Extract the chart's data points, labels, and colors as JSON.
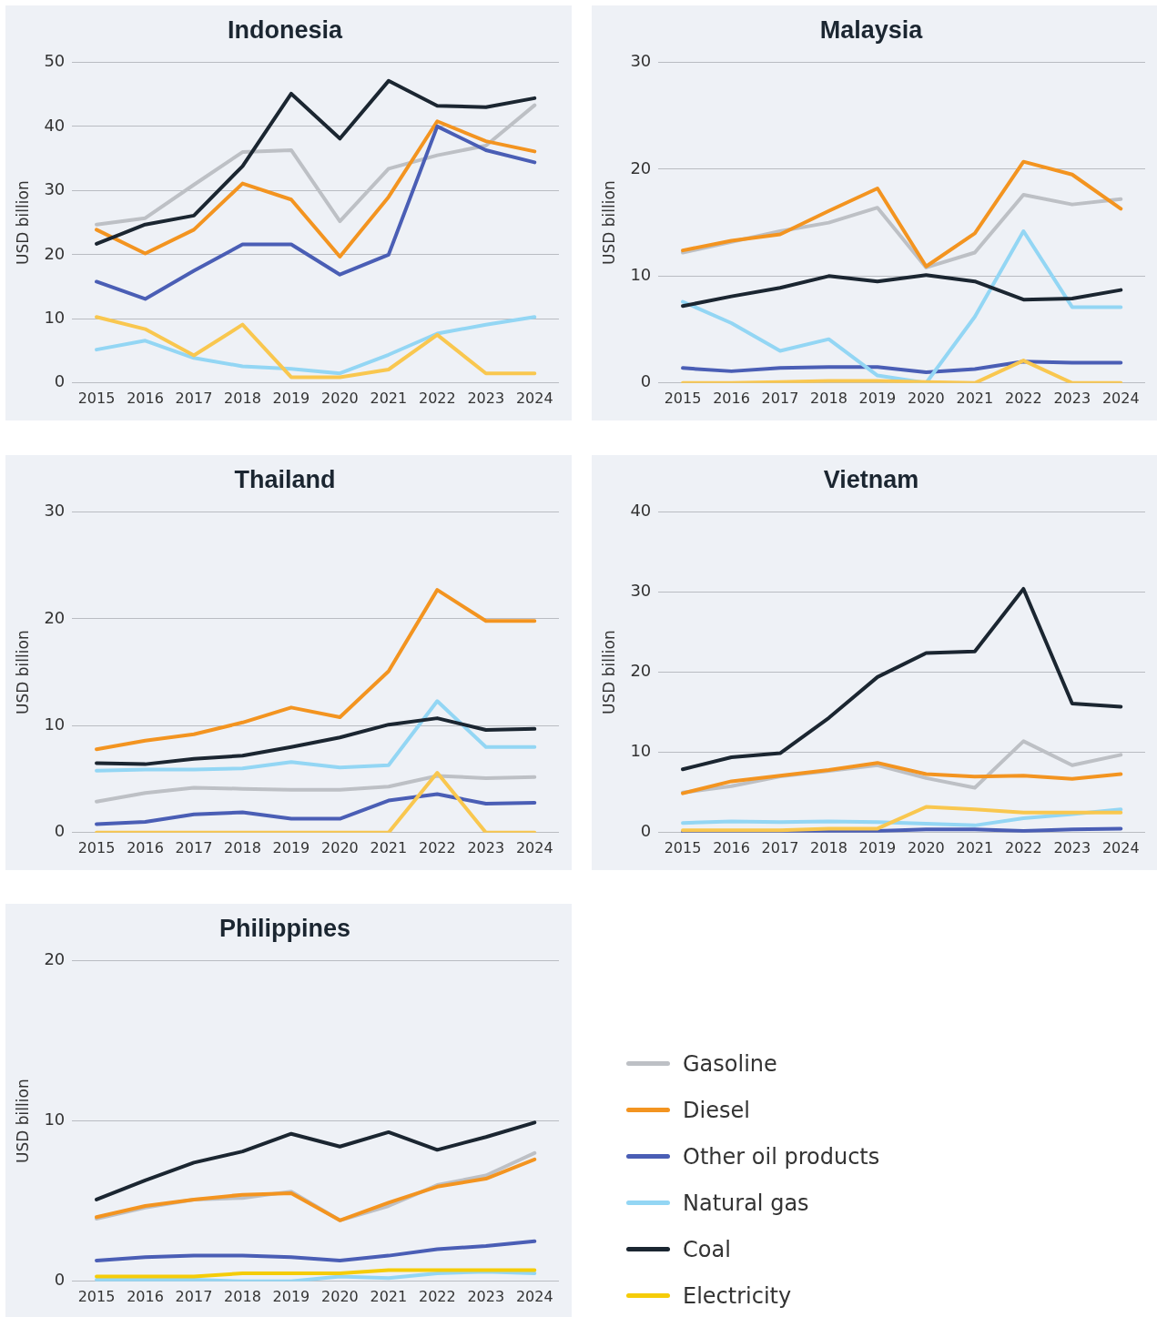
{
  "chart_data": [
    {
      "type": "line",
      "title": "Indonesia",
      "ylabel": "USD billion",
      "categories": [
        "2015",
        "2016",
        "2017",
        "2018",
        "2019",
        "2020",
        "2021",
        "2022",
        "2023",
        "2024"
      ],
      "ylim": [
        0,
        50
      ],
      "yticks": [
        0,
        10,
        20,
        30,
        40,
        50
      ],
      "grid": "y",
      "marker": "none",
      "line_style": "solid",
      "series": [
        {
          "color": "#bdc0c5",
          "values": [
            24.7,
            25.7,
            30.9,
            36.0,
            36.3,
            25.2,
            33.4,
            35.5,
            37.0,
            43.3
          ]
        },
        {
          "color": "#f39420",
          "values": [
            23.9,
            20.2,
            23.9,
            31.1,
            28.6,
            19.7,
            29.0,
            40.8,
            37.7,
            36.1
          ]
        },
        {
          "color": "#4a5eb5",
          "values": [
            15.8,
            13.1,
            17.5,
            21.6,
            21.6,
            16.9,
            20.0,
            40.0,
            36.3,
            34.4
          ]
        },
        {
          "color": "#93d6f4",
          "values": [
            5.2,
            6.6,
            3.9,
            2.6,
            2.2,
            1.5,
            4.4,
            7.7,
            9.1,
            10.3
          ]
        },
        {
          "color": "#1b2631",
          "values": [
            21.7,
            24.7,
            26.1,
            33.8,
            45.1,
            38.1,
            47.1,
            43.2,
            43.0,
            44.4
          ]
        },
        {
          "color": "#f9c74f",
          "values": [
            10.3,
            8.4,
            4.3,
            9.1,
            0.9,
            0.9,
            2.1,
            7.5,
            1.5,
            1.5
          ]
        }
      ]
    },
    {
      "type": "line",
      "title": "Malaysia",
      "ylabel": "USD billion",
      "categories": [
        "2015",
        "2016",
        "2017",
        "2018",
        "2019",
        "2020",
        "2021",
        "2022",
        "2023",
        "2024"
      ],
      "ylim": [
        0,
        30
      ],
      "yticks": [
        0,
        10,
        20,
        30
      ],
      "grid": "y",
      "marker": "none",
      "line_style": "solid",
      "series": [
        {
          "color": "#bdc0c5",
          "values": [
            12.2,
            13.2,
            14.2,
            15.0,
            16.4,
            10.8,
            12.2,
            17.6,
            16.7,
            17.2
          ]
        },
        {
          "color": "#f39420",
          "values": [
            12.4,
            13.3,
            13.9,
            16.1,
            18.2,
            10.9,
            14.0,
            20.7,
            19.5,
            16.3
          ]
        },
        {
          "color": "#4a5eb5",
          "values": [
            1.4,
            1.1,
            1.4,
            1.5,
            1.5,
            1.0,
            1.3,
            2.0,
            1.9,
            1.9
          ]
        },
        {
          "color": "#93d6f4",
          "values": [
            7.6,
            5.6,
            3.0,
            4.1,
            0.7,
            0,
            6.2,
            14.2,
            7.1,
            7.1
          ]
        },
        {
          "color": "#1b2631",
          "values": [
            7.2,
            8.1,
            8.9,
            10.0,
            9.5,
            10.1,
            9.5,
            7.8,
            7.9,
            8.7
          ]
        },
        {
          "color": "#f9c74f",
          "values": [
            0,
            0,
            0.1,
            0.2,
            0.2,
            0.1,
            0,
            2.1,
            0,
            0
          ]
        }
      ]
    },
    {
      "type": "line",
      "title": "Thailand",
      "ylabel": "USD billion",
      "categories": [
        "2015",
        "2016",
        "2017",
        "2018",
        "2019",
        "2020",
        "2021",
        "2022",
        "2023",
        "2024"
      ],
      "ylim": [
        0,
        30
      ],
      "yticks": [
        0,
        10,
        20,
        30
      ],
      "grid": "y",
      "marker": "none",
      "line_style": "solid",
      "series": [
        {
          "color": "#bdc0c5",
          "values": [
            2.9,
            3.7,
            4.2,
            4.1,
            4.0,
            4.0,
            4.3,
            5.3,
            5.1,
            5.2
          ]
        },
        {
          "color": "#f39420",
          "values": [
            7.8,
            8.6,
            9.2,
            10.3,
            11.7,
            10.8,
            15.1,
            22.7,
            19.8,
            19.8
          ]
        },
        {
          "color": "#4a5eb5",
          "values": [
            0.8,
            1.0,
            1.7,
            1.9,
            1.3,
            1.3,
            3.0,
            3.6,
            2.7,
            2.8
          ]
        },
        {
          "color": "#93d6f4",
          "values": [
            5.8,
            5.9,
            5.9,
            6.0,
            6.6,
            6.1,
            6.3,
            12.3,
            8.0,
            8.0
          ]
        },
        {
          "color": "#1b2631",
          "values": [
            6.5,
            6.4,
            6.9,
            7.2,
            8.0,
            8.9,
            10.1,
            10.7,
            9.6,
            9.7
          ]
        },
        {
          "color": "#f9c74f",
          "values": [
            0,
            0,
            0,
            0,
            0,
            0,
            0,
            5.6,
            0,
            0
          ]
        }
      ]
    },
    {
      "type": "line",
      "title": "Vietnam",
      "ylabel": "USD billion",
      "categories": [
        "2015",
        "2016",
        "2017",
        "2018",
        "2019",
        "2020",
        "2021",
        "2022",
        "2023",
        "2024"
      ],
      "ylim": [
        0,
        40
      ],
      "yticks": [
        0,
        10,
        20,
        30,
        40
      ],
      "grid": "y",
      "marker": "none",
      "line_style": "solid",
      "series": [
        {
          "color": "#bdc0c5",
          "values": [
            5.0,
            5.8,
            7.0,
            7.7,
            8.4,
            6.8,
            5.6,
            11.4,
            8.4,
            9.7
          ]
        },
        {
          "color": "#f39420",
          "values": [
            4.9,
            6.4,
            7.1,
            7.8,
            8.7,
            7.3,
            7.0,
            7.1,
            6.7,
            7.3
          ]
        },
        {
          "color": "#4a5eb5",
          "values": [
            0.1,
            0.1,
            0.1,
            0.2,
            0.2,
            0.4,
            0.4,
            0.2,
            0.4,
            0.5
          ]
        },
        {
          "color": "#93d6f4",
          "values": [
            1.2,
            1.4,
            1.3,
            1.4,
            1.3,
            1.1,
            0.9,
            1.8,
            2.3,
            2.9
          ]
        },
        {
          "color": "#1b2631",
          "values": [
            7.9,
            9.4,
            9.9,
            14.3,
            19.4,
            22.4,
            22.6,
            30.4,
            16.1,
            15.7
          ]
        },
        {
          "color": "#f9c74f",
          "values": [
            0.3,
            0.3,
            0.3,
            0.5,
            0.5,
            3.2,
            2.9,
            2.5,
            2.5,
            2.5
          ]
        }
      ]
    },
    {
      "type": "line",
      "title": "Philippines",
      "ylabel": "USD billion",
      "categories": [
        "2015",
        "2016",
        "2017",
        "2018",
        "2019",
        "2020",
        "2021",
        "2022",
        "2023",
        "2024"
      ],
      "ylim": [
        0,
        20
      ],
      "yticks": [
        0,
        10,
        20
      ],
      "grid": "y",
      "marker": "none",
      "line_style": "solid",
      "legend": "right",
      "series": [
        {
          "name": "Gasoline",
          "color": "#bdc0c5",
          "values": [
            3.9,
            4.6,
            5.1,
            5.2,
            5.6,
            3.8,
            4.7,
            6.0,
            6.6,
            8.0
          ]
        },
        {
          "name": "Diesel",
          "color": "#f39420",
          "values": [
            4.0,
            4.7,
            5.1,
            5.4,
            5.5,
            3.8,
            4.9,
            5.9,
            6.4,
            7.6
          ]
        },
        {
          "name": "Other oil products",
          "color": "#4a5eb5",
          "values": [
            1.3,
            1.5,
            1.6,
            1.6,
            1.5,
            1.3,
            1.6,
            2.0,
            2.2,
            2.5
          ]
        },
        {
          "name": "Natural gas",
          "color": "#93d6f4",
          "values": [
            0.1,
            0.1,
            0.1,
            0,
            0,
            0.3,
            0.2,
            0.5,
            0.6,
            0.5
          ]
        },
        {
          "name": "Coal",
          "color": "#1b2631",
          "values": [
            5.1,
            6.3,
            7.4,
            8.1,
            9.2,
            8.4,
            9.3,
            8.2,
            9.0,
            9.9
          ]
        },
        {
          "name": "Electricity",
          "color": "#f5cc08",
          "values": [
            0.3,
            0.3,
            0.3,
            0.5,
            0.5,
            0.5,
            0.7,
            0.7,
            0.7,
            0.7
          ]
        }
      ]
    }
  ]
}
